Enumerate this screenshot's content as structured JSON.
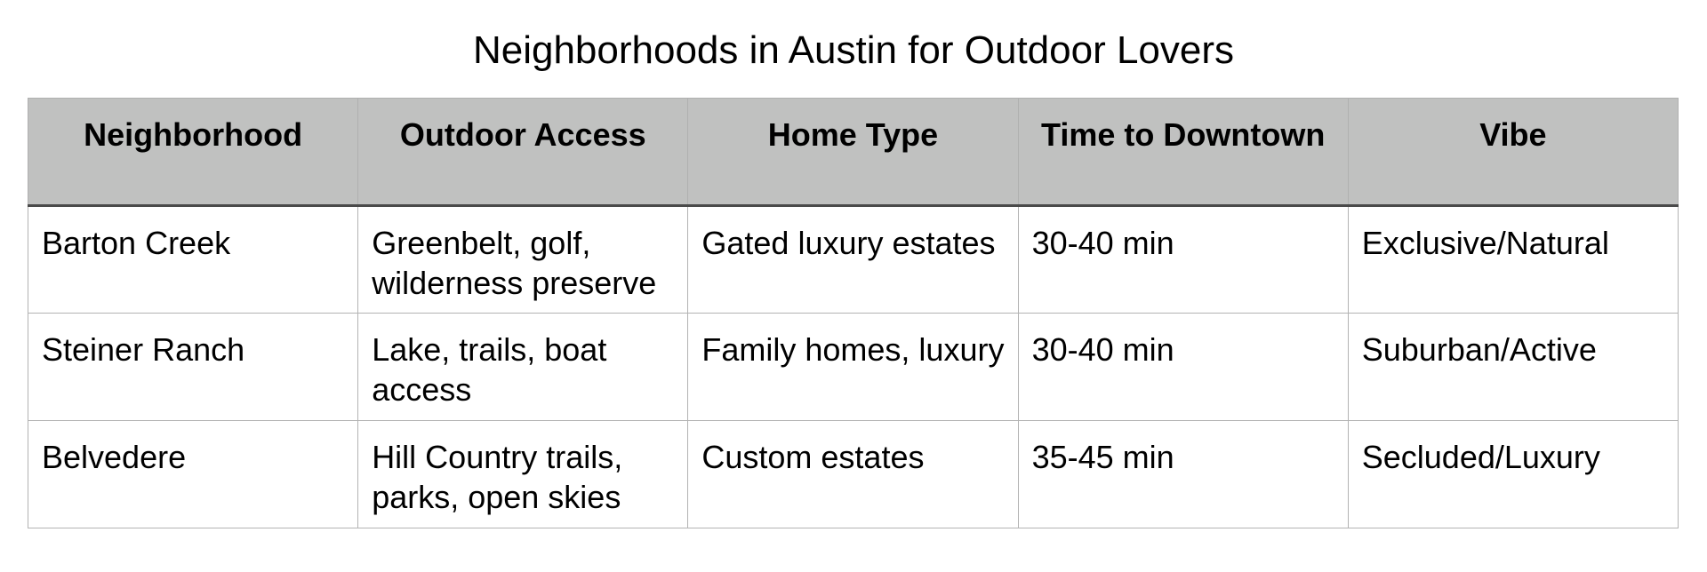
{
  "title": "Neighborhoods in Austin for Outdoor Lovers",
  "table": {
    "headers": [
      "Neighborhood",
      "Outdoor Access",
      "Home Type",
      "Time to Downtown",
      "Vibe"
    ],
    "rows": [
      [
        "Barton Creek",
        "Greenbelt, golf, wilderness preserve",
        "Gated luxury estates",
        "30-40 min",
        "Exclusive/Natural"
      ],
      [
        "Steiner Ranch",
        "Lake, trails, boat access",
        "Family homes, luxury",
        "30-40 min",
        "Suburban/Active"
      ],
      [
        "Belvedere",
        "Hill Country trails, parks, open skies",
        "Custom estates",
        "35-45 min",
        "Secluded/Luxury"
      ]
    ]
  }
}
